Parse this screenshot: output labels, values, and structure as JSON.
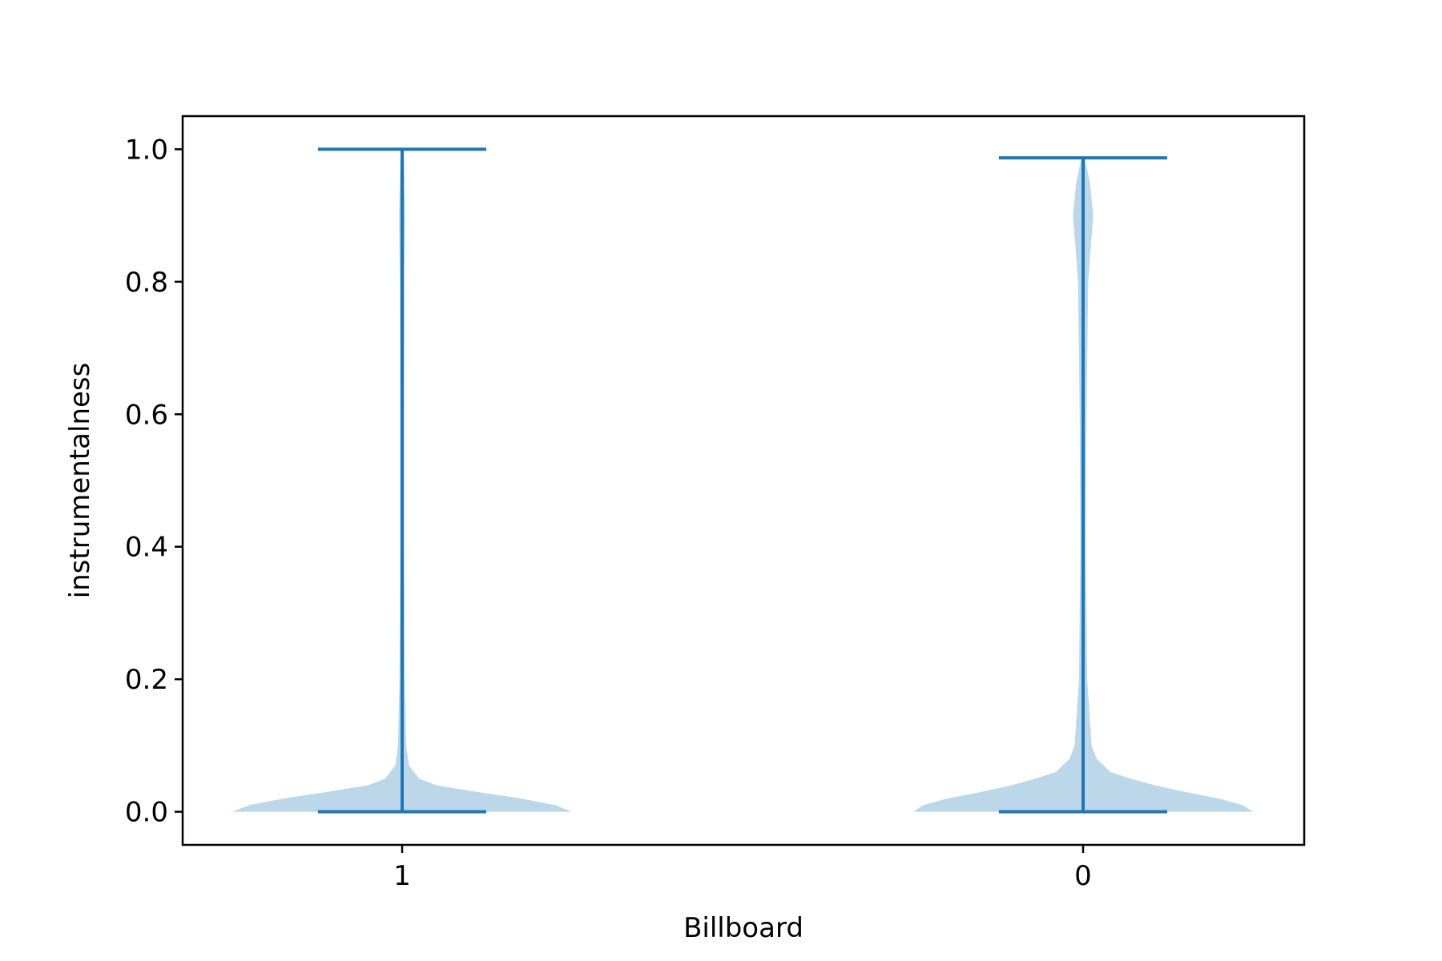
{
  "chart_data": {
    "type": "violin",
    "xlabel": "Billboard",
    "ylabel": "instrumentalness",
    "categories": [
      "1",
      "0"
    ],
    "ylim": [
      -0.05,
      1.05
    ],
    "yticks": [
      0.0,
      0.2,
      0.4,
      0.6,
      0.8,
      1.0
    ],
    "ytick_labels": [
      "0.0",
      "0.2",
      "0.4",
      "0.6",
      "0.8",
      "1.0"
    ],
    "grid": false,
    "legend": "none",
    "colors": {
      "body": "#a6c8e3",
      "lines": "#1f77b4",
      "axes": "#000000"
    },
    "violins": [
      {
        "category": "1",
        "min": 0.0,
        "max": 1.0,
        "density_halfwidth": [
          [
            0.0,
            0.5
          ],
          [
            0.01,
            0.45
          ],
          [
            0.02,
            0.35
          ],
          [
            0.03,
            0.22
          ],
          [
            0.04,
            0.1
          ],
          [
            0.05,
            0.05
          ],
          [
            0.07,
            0.02
          ],
          [
            0.1,
            0.012
          ],
          [
            0.2,
            0.008
          ],
          [
            0.4,
            0.006
          ],
          [
            0.6,
            0.006
          ],
          [
            0.8,
            0.007
          ],
          [
            0.9,
            0.009
          ],
          [
            1.0,
            0.005
          ]
        ]
      },
      {
        "category": "0",
        "min": 0.0,
        "max": 0.987,
        "density_halfwidth": [
          [
            0.0,
            0.5
          ],
          [
            0.01,
            0.47
          ],
          [
            0.02,
            0.4
          ],
          [
            0.03,
            0.3
          ],
          [
            0.04,
            0.21
          ],
          [
            0.05,
            0.14
          ],
          [
            0.06,
            0.08
          ],
          [
            0.08,
            0.04
          ],
          [
            0.1,
            0.025
          ],
          [
            0.2,
            0.012
          ],
          [
            0.4,
            0.008
          ],
          [
            0.6,
            0.01
          ],
          [
            0.8,
            0.015
          ],
          [
            0.85,
            0.022
          ],
          [
            0.9,
            0.03
          ],
          [
            0.95,
            0.02
          ],
          [
            0.987,
            0.005
          ]
        ]
      }
    ]
  }
}
